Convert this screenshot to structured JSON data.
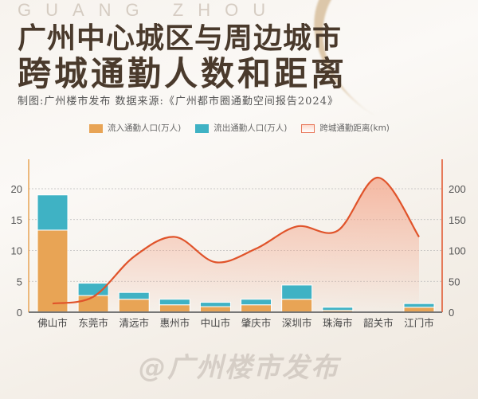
{
  "watermark": "GUANG ZHOU",
  "title_line1": "广州中心城区与周边城市",
  "title_line2": "跨城通勤人数和距离",
  "subtitle": "制图:广州楼市发布   数据来源:《广州都市圈通勤空间报告2024》",
  "footer": "@广州楼市发布",
  "colors": {
    "inflow": "#e8a455",
    "outflow": "#3fb2c4",
    "distance": "#e0532a",
    "area": "#f4a488"
  },
  "chart_data": {
    "type": "bar+line",
    "categories": [
      "佛山市",
      "东莞市",
      "清远市",
      "惠州市",
      "中山市",
      "肇庆市",
      "深圳市",
      "珠海市",
      "韶关市",
      "江门市"
    ],
    "series": [
      {
        "name": "流入通勤人口(万人)",
        "type": "stacked-bar",
        "axis": "left",
        "values": [
          13.3,
          2.7,
          2.1,
          1.2,
          0.9,
          1.2,
          2.1,
          0.3,
          0,
          0.8
        ]
      },
      {
        "name": "流出通勤人口(万人)",
        "type": "stacked-bar",
        "axis": "left",
        "values": [
          5.7,
          2.0,
          1.1,
          0.9,
          0.7,
          0.9,
          2.3,
          0.5,
          0,
          0.6
        ]
      },
      {
        "name": "跨城通勤距离(km)",
        "type": "area-line",
        "axis": "right",
        "values": [
          14,
          25,
          90,
          122,
          81,
          103,
          139,
          132,
          218,
          122
        ]
      }
    ],
    "left_axis": {
      "ticks": [
        "0",
        "5",
        "10",
        "15",
        "20"
      ],
      "range": [
        0,
        24
      ]
    },
    "right_axis": {
      "ticks": [
        "0",
        "50",
        "100",
        "150",
        "200"
      ],
      "range": [
        0,
        240
      ]
    },
    "grid": true,
    "legend": "top-center"
  }
}
